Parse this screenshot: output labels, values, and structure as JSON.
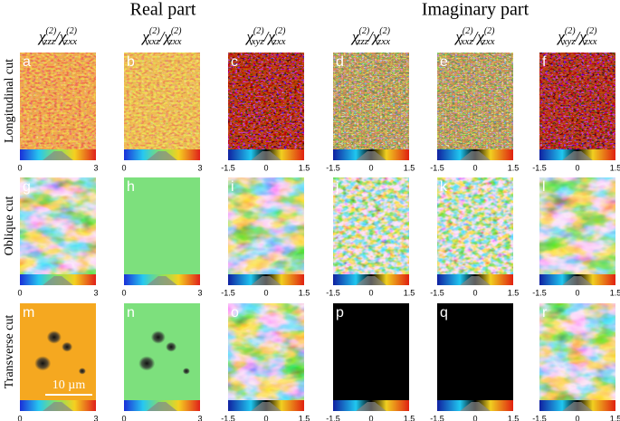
{
  "header": {
    "real": "Real part",
    "imaginary": "Imaginary part"
  },
  "symbol": "χ",
  "order": "(2)",
  "slash": "/",
  "columns": [
    {
      "num": "zzz",
      "den": "zxx",
      "ticks": [
        "0",
        "3"
      ]
    },
    {
      "num": "xxz",
      "den": "zxx",
      "ticks": [
        "0",
        "3"
      ]
    },
    {
      "num": "xyz",
      "den": "zxx",
      "ticks": [
        "-1.5",
        "0",
        "1.5"
      ]
    },
    {
      "num": "zzz",
      "den": "zxx",
      "ticks": [
        "-1.5",
        "0",
        "1.5"
      ]
    },
    {
      "num": "xxz",
      "den": "zxx",
      "ticks": [
        "-1.5",
        "0",
        "1.5"
      ]
    },
    {
      "num": "xyz",
      "den": "zxx",
      "ticks": [
        "-1.5",
        "0",
        "1.5"
      ]
    }
  ],
  "rows": [
    {
      "label": "Longitudinal cut",
      "panels": [
        "a",
        "b",
        "c",
        "d",
        "e",
        "f"
      ]
    },
    {
      "label": "Oblique cut",
      "panels": [
        "g",
        "h",
        "i",
        "j",
        "k",
        "l"
      ]
    },
    {
      "label": "Transverse cut",
      "panels": [
        "m",
        "n",
        "o",
        "p",
        "q",
        "r"
      ]
    }
  ],
  "scale_bar": "10 µm"
}
